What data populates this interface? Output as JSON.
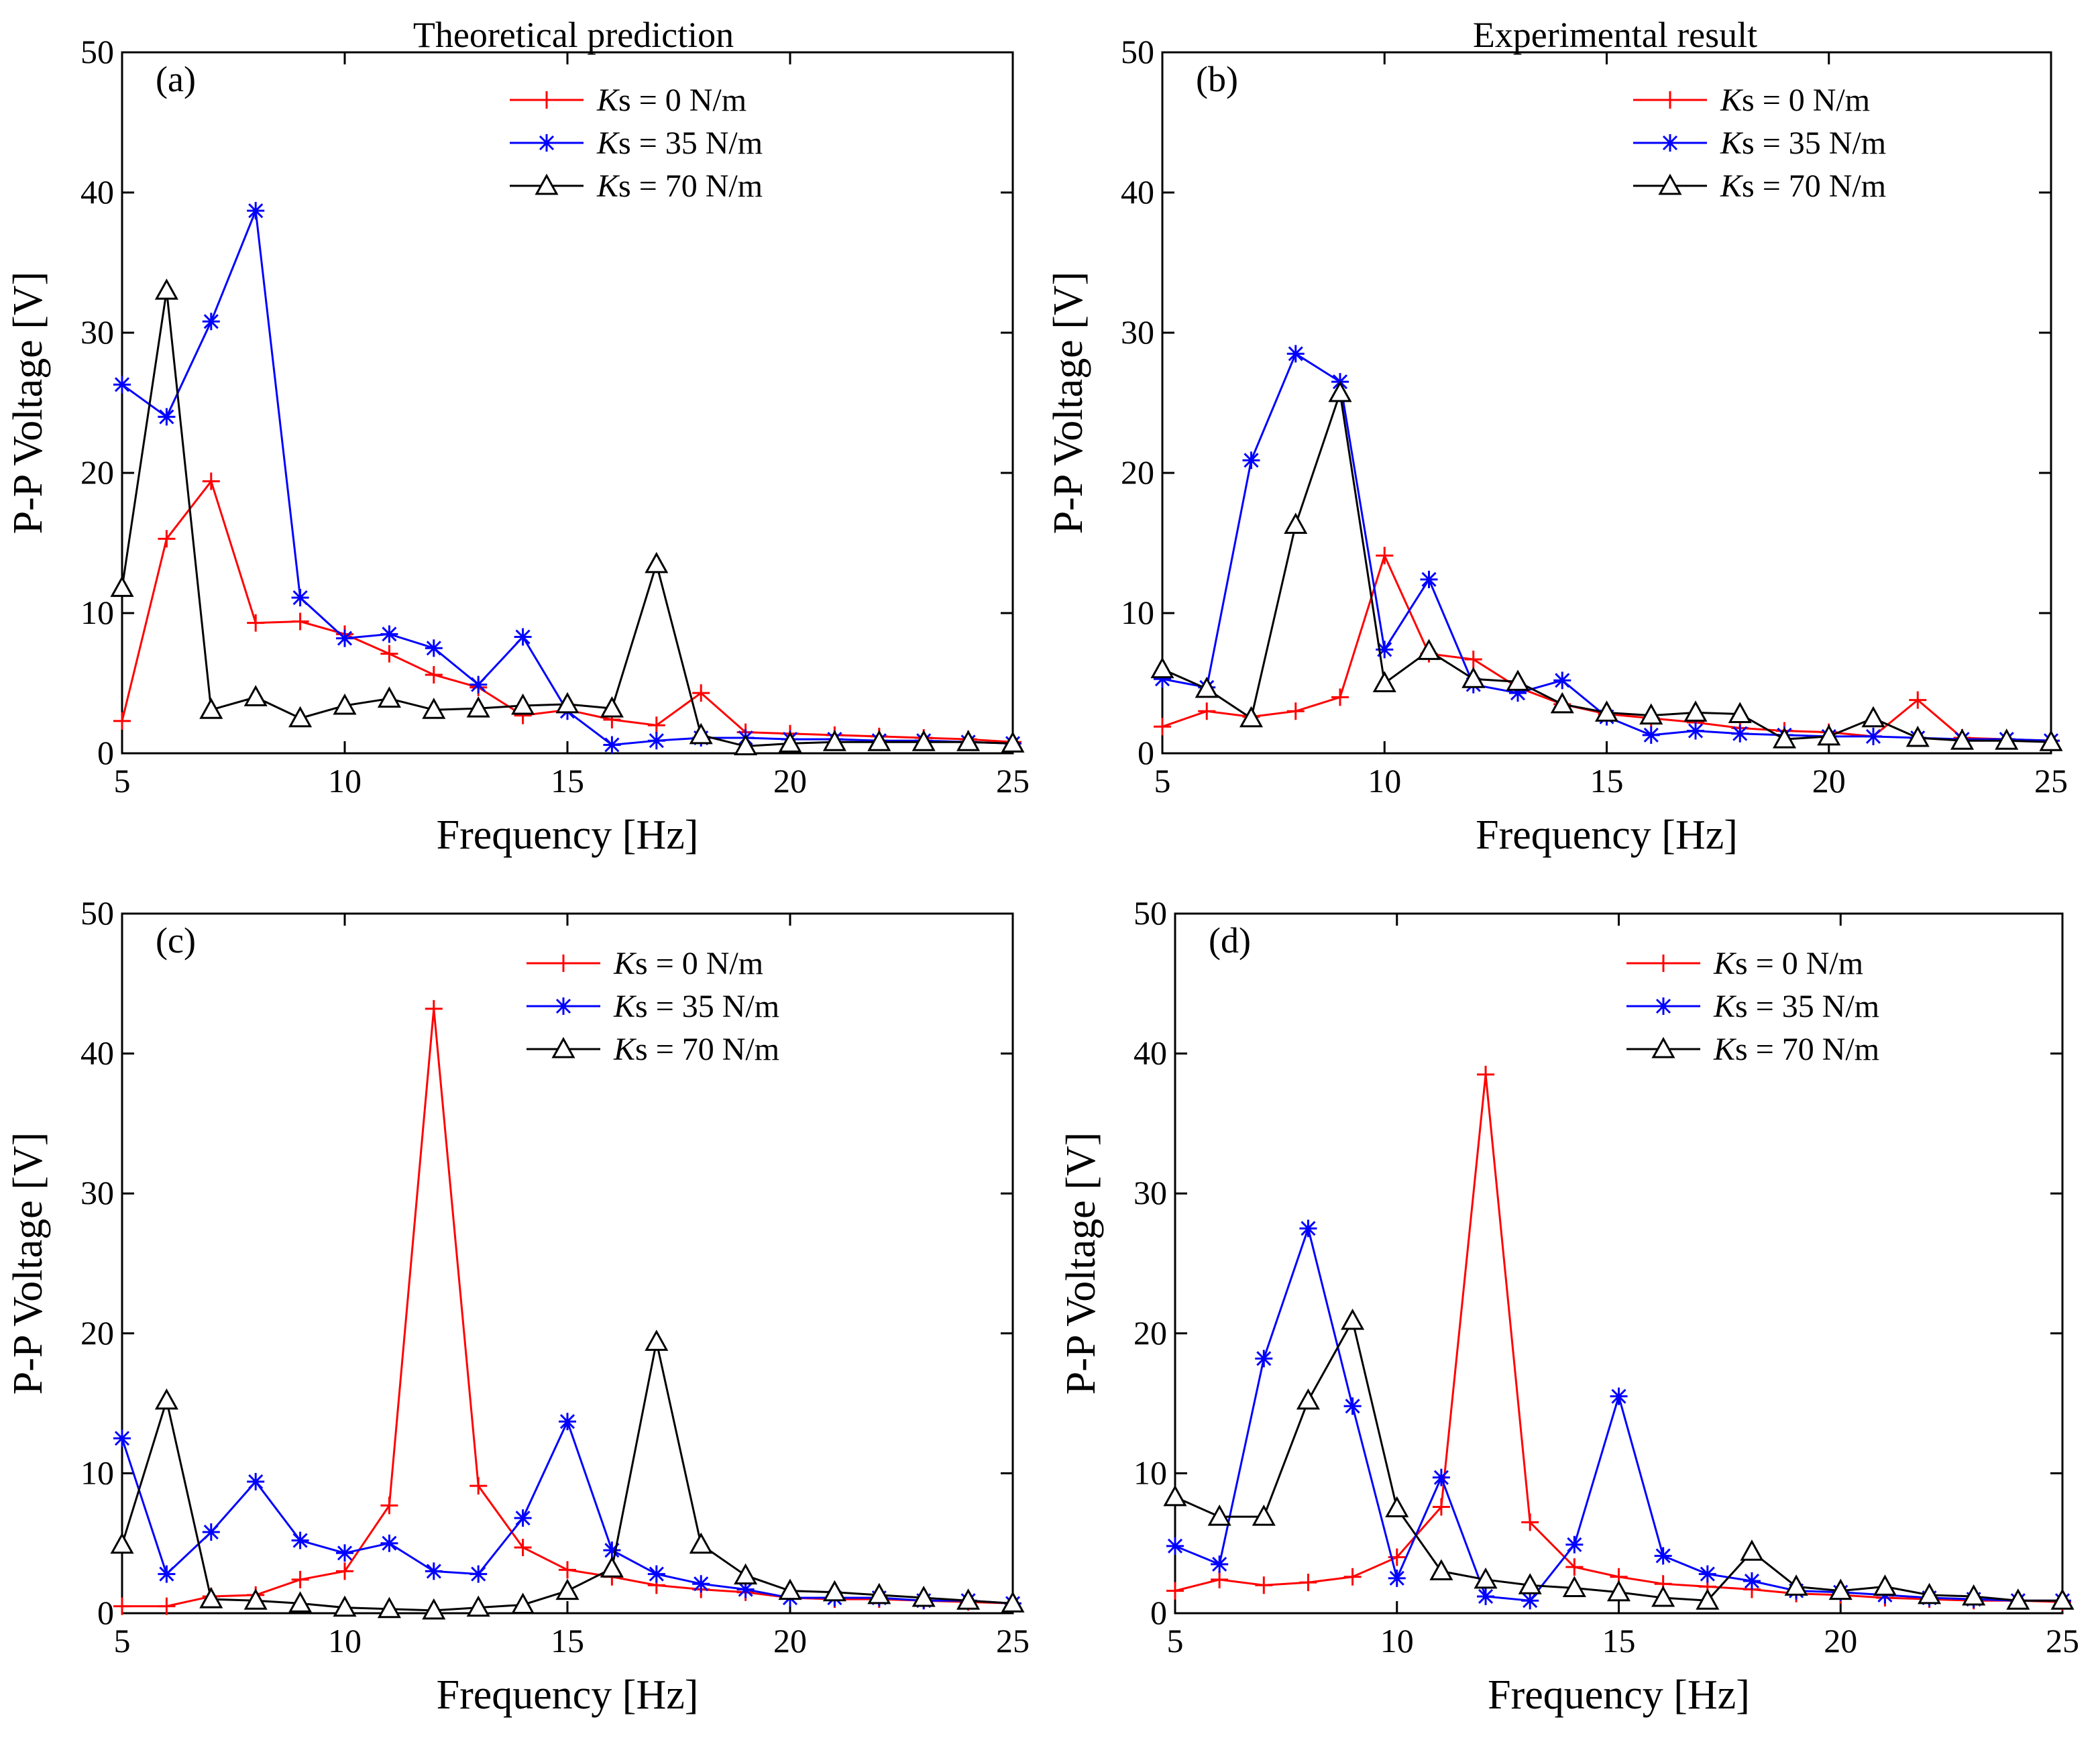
{
  "figure": {
    "column_titles": [
      "Theoretical prediction",
      "Experimental result"
    ]
  },
  "legend": [
    {
      "name": "Ks = 0 N/m",
      "var": "K",
      "rest": "s = 0 N/m",
      "color": "#ff0000",
      "marker": "plus"
    },
    {
      "name": "Ks = 35 N/m",
      "var": "K",
      "rest": "s = 35 N/m",
      "color": "#0000ff",
      "marker": "star"
    },
    {
      "name": "Ks = 70 N/m",
      "var": "K",
      "rest": "s = 70 N/m",
      "color": "#000000",
      "marker": "triangle"
    }
  ],
  "chart_data": [
    {
      "type": "line",
      "panel": "(a)",
      "title": "Theoretical prediction",
      "xlabel": "Frequency [Hz]",
      "ylabel": "P-P Voltage [V]",
      "xlim": [
        5,
        25
      ],
      "ylim": [
        0,
        50
      ],
      "xticks": [
        5,
        10,
        15,
        20,
        25
      ],
      "yticks": [
        0,
        10,
        20,
        30,
        40,
        50
      ],
      "x": [
        5,
        6,
        7,
        8,
        9,
        10,
        11,
        12,
        13,
        14,
        15,
        16,
        17,
        18,
        19,
        20,
        21,
        22,
        23,
        24,
        25
      ],
      "series": [
        {
          "name": "Ks = 0 N/m",
          "values": [
            2.3,
            15.3,
            19.4,
            9.3,
            9.4,
            8.5,
            7.1,
            5.6,
            4.7,
            2.7,
            3.1,
            2.4,
            2.0,
            4.3,
            1.5,
            1.4,
            1.3,
            1.2,
            1.1,
            1.0,
            0.8
          ]
        },
        {
          "name": "Ks = 35 N/m",
          "values": [
            26.3,
            24.0,
            30.8,
            38.7,
            11.1,
            8.2,
            8.5,
            7.5,
            4.9,
            8.3,
            3.0,
            0.6,
            0.9,
            1.1,
            1.1,
            1.0,
            1.0,
            0.9,
            0.9,
            0.8,
            0.7
          ]
        },
        {
          "name": "Ks = 70 N/m",
          "values": [
            11.8,
            33.0,
            3.1,
            4.0,
            2.5,
            3.4,
            3.9,
            3.1,
            3.2,
            3.4,
            3.5,
            3.2,
            13.5,
            1.3,
            0.5,
            0.7,
            0.8,
            0.8,
            0.8,
            0.8,
            0.7
          ]
        }
      ]
    },
    {
      "type": "line",
      "panel": "(b)",
      "title": "Experimental result",
      "xlabel": "Frequency [Hz]",
      "ylabel": "P-P Voltage [V]",
      "xlim": [
        5,
        25
      ],
      "ylim": [
        0,
        50
      ],
      "xticks": [
        5,
        10,
        15,
        20,
        25
      ],
      "yticks": [
        0,
        10,
        20,
        30,
        40,
        50
      ],
      "x": [
        5,
        6,
        7,
        8,
        9,
        10,
        11,
        12,
        13,
        14,
        15,
        16,
        17,
        18,
        19,
        20,
        21,
        22,
        23,
        24,
        25
      ],
      "series": [
        {
          "name": "Ks = 0 N/m",
          "values": [
            1.9,
            3.0,
            2.6,
            3.0,
            4.0,
            14.1,
            7.1,
            6.7,
            4.7,
            3.5,
            2.8,
            2.5,
            2.2,
            1.8,
            1.6,
            1.5,
            1.2,
            3.8,
            1.1,
            1.0,
            0.9
          ]
        },
        {
          "name": "Ks = 35 N/m",
          "values": [
            5.3,
            4.7,
            20.9,
            28.5,
            26.5,
            7.4,
            12.4,
            4.9,
            4.3,
            5.2,
            2.6,
            1.3,
            1.6,
            1.4,
            1.3,
            1.2,
            1.2,
            1.1,
            1.0,
            1.0,
            0.9
          ]
        },
        {
          "name": "Ks = 70 N/m",
          "values": [
            6.0,
            4.6,
            2.5,
            16.3,
            25.7,
            5.0,
            7.3,
            5.3,
            5.1,
            3.5,
            2.9,
            2.7,
            2.9,
            2.8,
            1.0,
            1.2,
            2.5,
            1.1,
            0.9,
            0.9,
            0.8
          ]
        }
      ]
    },
    {
      "type": "line",
      "panel": "(c)",
      "title": "",
      "xlabel": "Frequency [Hz]",
      "ylabel": "P-P Voltage [V]",
      "xlim": [
        5,
        25
      ],
      "ylim": [
        0,
        50
      ],
      "xticks": [
        5,
        10,
        15,
        20,
        25
      ],
      "yticks": [
        0,
        10,
        20,
        30,
        40,
        50
      ],
      "x": [
        5,
        6,
        7,
        8,
        9,
        10,
        11,
        12,
        13,
        14,
        15,
        16,
        17,
        18,
        19,
        20,
        21,
        22,
        23,
        24,
        25
      ],
      "series": [
        {
          "name": "Ks = 0 N/m",
          "values": [
            0.5,
            0.5,
            1.2,
            1.3,
            2.4,
            3.0,
            7.7,
            43.2,
            9.1,
            4.7,
            3.1,
            2.6,
            2.0,
            1.7,
            1.5,
            1.1,
            1.0,
            1.0,
            0.9,
            0.8,
            0.7
          ]
        },
        {
          "name": "Ks = 35 N/m",
          "values": [
            12.5,
            2.8,
            5.8,
            9.4,
            5.2,
            4.3,
            5.0,
            3.0,
            2.8,
            6.8,
            13.7,
            4.5,
            2.8,
            2.1,
            1.7,
            1.1,
            1.1,
            1.1,
            0.9,
            0.9,
            0.7
          ]
        },
        {
          "name": "Ks = 70 N/m",
          "values": [
            4.9,
            15.2,
            1.0,
            0.9,
            0.7,
            0.4,
            0.3,
            0.2,
            0.4,
            0.6,
            1.6,
            3.2,
            19.4,
            4.9,
            2.7,
            1.6,
            1.5,
            1.3,
            1.1,
            0.9,
            0.7
          ]
        }
      ]
    },
    {
      "type": "line",
      "panel": "(d)",
      "title": "",
      "xlabel": "Frequency [Hz]",
      "ylabel": "P-P Voltage [V]",
      "xlim": [
        5,
        25
      ],
      "ylim": [
        0,
        50
      ],
      "xticks": [
        5,
        10,
        15,
        20,
        25
      ],
      "yticks": [
        0,
        10,
        20,
        30,
        40,
        50
      ],
      "x": [
        5,
        6,
        7,
        8,
        9,
        10,
        11,
        12,
        13,
        14,
        15,
        16,
        17,
        18,
        19,
        20,
        21,
        22,
        23,
        24,
        25
      ],
      "series": [
        {
          "name": "Ks = 0 N/m",
          "values": [
            1.6,
            2.4,
            2.0,
            2.2,
            2.6,
            4.0,
            7.6,
            38.5,
            6.5,
            3.3,
            2.6,
            2.1,
            1.9,
            1.7,
            1.4,
            1.3,
            1.1,
            1.0,
            0.9,
            0.9,
            0.8
          ]
        },
        {
          "name": "Ks = 35 N/m",
          "values": [
            4.8,
            3.5,
            18.2,
            27.5,
            14.8,
            2.5,
            9.7,
            1.2,
            0.9,
            4.9,
            15.5,
            4.1,
            2.8,
            2.3,
            1.6,
            1.5,
            1.3,
            1.1,
            1.0,
            0.9,
            0.9
          ]
        },
        {
          "name": "Ks = 70 N/m",
          "values": [
            8.3,
            6.9,
            6.9,
            15.2,
            20.9,
            7.5,
            3.0,
            2.4,
            2.0,
            1.8,
            1.5,
            1.1,
            0.9,
            4.4,
            1.9,
            1.6,
            1.9,
            1.3,
            1.2,
            0.9,
            0.9
          ]
        }
      ]
    }
  ]
}
